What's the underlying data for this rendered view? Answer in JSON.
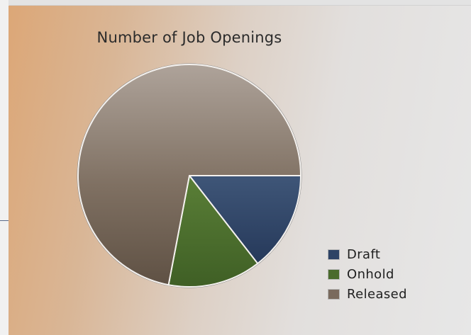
{
  "chart_data": {
    "type": "pie",
    "title": "Number of Job Openings",
    "labels": [
      "Draft",
      "Onhold",
      "Released"
    ],
    "values": [
      14.5,
      13.5,
      72
    ],
    "colors": [
      "#2e4466",
      "#4a6b2d",
      "#7a6b5e"
    ],
    "legend_position": "bottom-right"
  },
  "legend": {
    "items": [
      {
        "label": "Draft",
        "color": "#2e4466"
      },
      {
        "label": "Onhold",
        "color": "#4a6b2d"
      },
      {
        "label": "Released",
        "color": "#7a6b5e"
      }
    ]
  }
}
